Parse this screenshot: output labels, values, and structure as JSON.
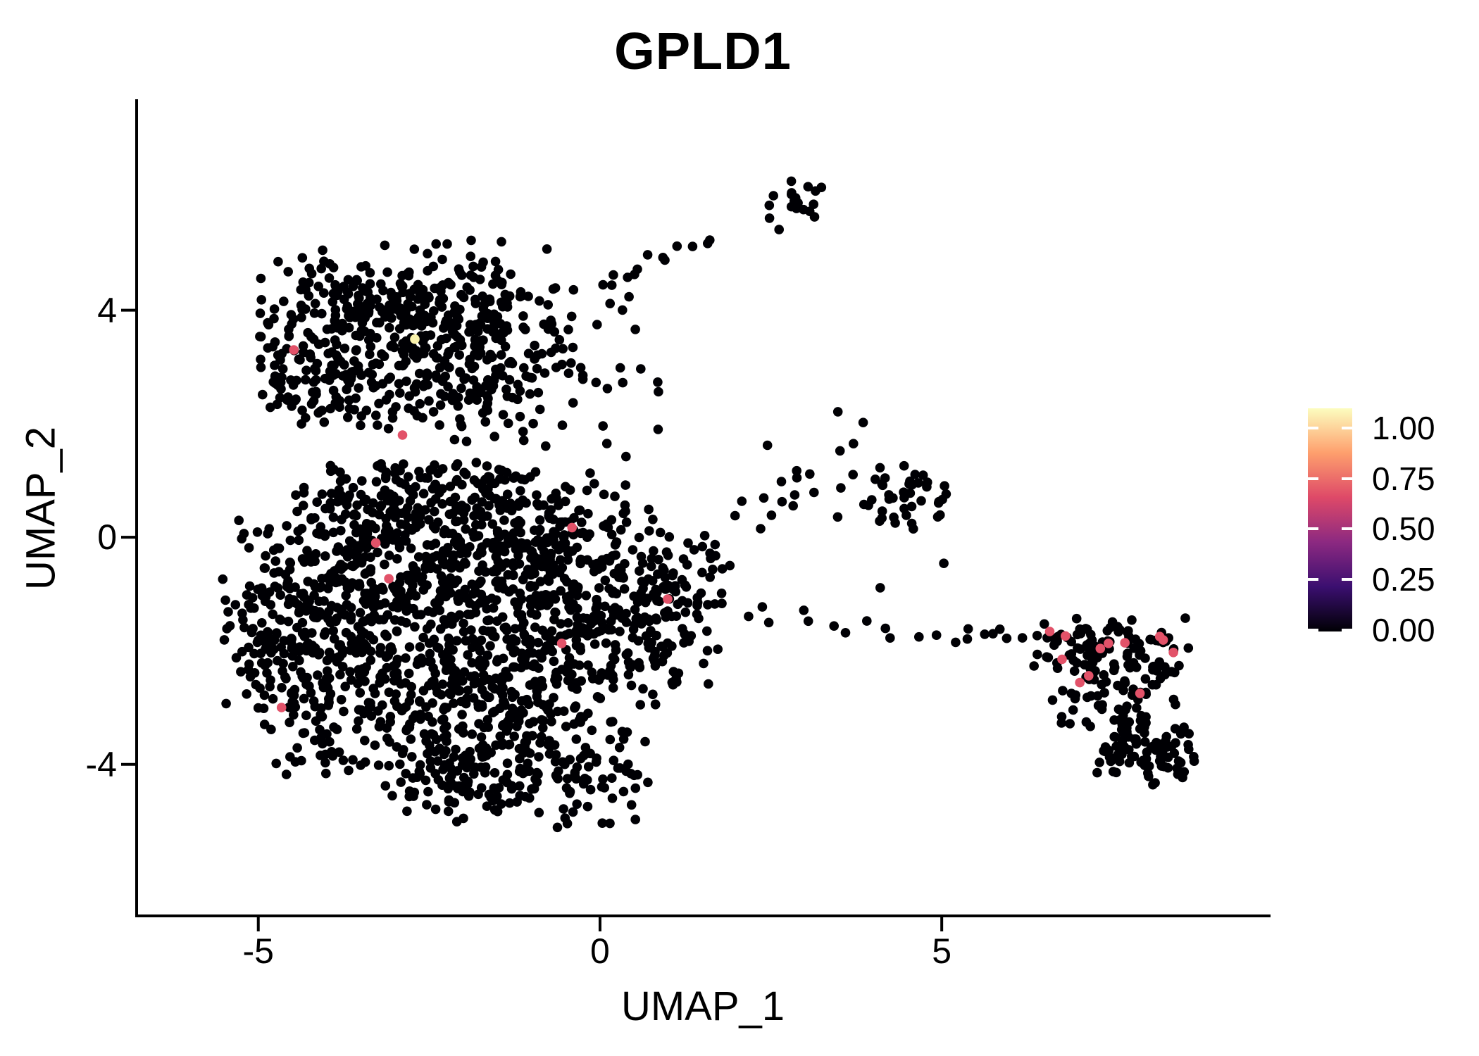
{
  "title": "GPLD1",
  "chart_data": {
    "type": "scatter",
    "title": "GPLD1",
    "xlabel": "UMAP_1",
    "ylabel": "UMAP_2",
    "xlim": [
      -6.78,
      9.79
    ],
    "ylim": [
      -6.67,
      7.69
    ],
    "grid": false,
    "background": "#ffffff",
    "base_color": "#000004",
    "point_radius_px": 6.8,
    "x_ticks": [
      {
        "value": -5,
        "label": "-5"
      },
      {
        "value": 0,
        "label": "0"
      },
      {
        "value": 5,
        "label": "5"
      }
    ],
    "y_ticks": [
      {
        "value": 4,
        "label": "4"
      },
      {
        "value": 0,
        "label": "0"
      },
      {
        "value": -4,
        "label": "-4"
      }
    ],
    "legend": {
      "position": "right",
      "colormap": "magma",
      "tick_labels": [
        "1.00",
        "0.75",
        "0.50",
        "0.25",
        "0.00"
      ],
      "tick_values": [
        1.0,
        0.75,
        0.5,
        0.25,
        0.0
      ],
      "gradient_stops": [
        {
          "t": 0.0,
          "color": "#000004"
        },
        {
          "t": 0.2,
          "color": "#3B0F70"
        },
        {
          "t": 0.4,
          "color": "#8C2981"
        },
        {
          "t": 0.6,
          "color": "#DE4968"
        },
        {
          "t": 0.8,
          "color": "#FE9F6D"
        },
        {
          "t": 1.0,
          "color": "#FCFDBF"
        }
      ]
    },
    "seed": 7,
    "clusters": [
      {
        "name": "upper-left-top",
        "cx": -2.75,
        "cy": 4.15,
        "sx": 1.05,
        "sy": 0.5,
        "n": 270,
        "bounds": [
          -5.0,
          0.95,
          2.8,
          5.3
        ]
      },
      {
        "name": "upper-left-bottom",
        "cx": -2.45,
        "cy": 3.0,
        "sx": 1.15,
        "sy": 0.62,
        "n": 300,
        "bounds": [
          -5.05,
          0.95,
          1.6,
          4.4
        ]
      },
      {
        "name": "upper-left-arm",
        "cx": -4.35,
        "cy": 3.0,
        "sx": 0.4,
        "sy": 0.5,
        "n": 55,
        "bounds": [
          -5.05,
          -3.5,
          2.1,
          3.95
        ]
      },
      {
        "name": "top-small",
        "cx": 2.85,
        "cy": 5.95,
        "sx": 0.23,
        "sy": 0.2,
        "n": 19,
        "bounds": [
          2.3,
          3.45,
          5.45,
          6.45
        ]
      },
      {
        "name": "main-left",
        "cx": -4.3,
        "cy": -1.6,
        "sx": 0.65,
        "sy": 1.1,
        "n": 280,
        "bounds": [
          -5.65,
          -3.2,
          -4.0,
          0.9
        ]
      },
      {
        "name": "main-center-up",
        "cx": -2.9,
        "cy": -0.4,
        "sx": 0.85,
        "sy": 0.75,
        "n": 300,
        "bounds": [
          -5.3,
          -0.9,
          -2.2,
          1.3
        ]
      },
      {
        "name": "main-center-low",
        "cx": -2.4,
        "cy": -2.6,
        "sx": 1.0,
        "sy": 0.85,
        "n": 340,
        "bounds": [
          -5.0,
          0.2,
          -4.6,
          -0.9
        ]
      },
      {
        "name": "main-mid-up",
        "cx": -0.9,
        "cy": -0.1,
        "sx": 0.75,
        "sy": 0.65,
        "n": 230,
        "bounds": [
          -2.4,
          0.9,
          -1.6,
          1.2
        ]
      },
      {
        "name": "main-mid-low",
        "cx": -0.4,
        "cy": -1.9,
        "sx": 0.85,
        "sy": 0.85,
        "n": 260,
        "bounds": [
          -2.2,
          1.4,
          -4.0,
          -0.3
        ]
      },
      {
        "name": "main-right",
        "cx": 0.9,
        "cy": -1.0,
        "sx": 0.6,
        "sy": 0.8,
        "n": 130,
        "bounds": [
          -0.2,
          1.8,
          -2.8,
          0.3
        ]
      },
      {
        "name": "main-bottom",
        "cx": -1.3,
        "cy": -4.1,
        "sx": 1.0,
        "sy": 0.5,
        "n": 190,
        "bounds": [
          -3.6,
          0.8,
          -5.15,
          -3.2
        ]
      },
      {
        "name": "main-top-band",
        "cx": -2.5,
        "cy": 0.8,
        "sx": 0.9,
        "sy": 0.4,
        "n": 110,
        "bounds": [
          -4.6,
          -0.6,
          0.1,
          1.35
        ]
      },
      {
        "name": "mid-right",
        "cx": 4.5,
        "cy": 0.8,
        "sx": 0.33,
        "sy": 0.32,
        "n": 42,
        "bounds": [
          3.8,
          5.15,
          0.1,
          1.5
        ]
      },
      {
        "name": "mid-right-halo",
        "cx": 3.0,
        "cy": 0.85,
        "sx": 0.7,
        "sy": 0.5,
        "n": 18,
        "bounds": [
          1.9,
          4.0,
          -0.1,
          1.7
        ]
      },
      {
        "name": "far-right-top",
        "cx": 7.4,
        "cy": -1.95,
        "sx": 0.72,
        "sy": 0.3,
        "n": 105,
        "bounds": [
          6.2,
          8.65,
          -2.55,
          -1.4
        ]
      },
      {
        "name": "far-right-mid",
        "cx": 7.5,
        "cy": -2.85,
        "sx": 0.55,
        "sy": 0.38,
        "n": 55,
        "bounds": [
          6.6,
          8.5,
          -3.45,
          -2.35
        ]
      },
      {
        "name": "far-right-bottom",
        "cx": 8.05,
        "cy": -3.85,
        "sx": 0.5,
        "sy": 0.32,
        "n": 85,
        "bounds": [
          7.15,
          8.75,
          -4.4,
          -3.25
        ]
      }
    ],
    "trails": [
      {
        "name": "ul-to-top-cluster",
        "x1": -0.15,
        "y1": 4.4,
        "x2": 1.7,
        "y2": 5.4,
        "n": 13,
        "jitter": 0.14
      },
      {
        "name": "main-to-far-right",
        "x1": 2.0,
        "y1": -1.35,
        "x2": 6.15,
        "y2": -1.85,
        "n": 17,
        "jitter": 0.17
      }
    ],
    "singles": [
      [
        2.48,
        5.62
      ],
      [
        2.62,
        5.42
      ],
      [
        3.48,
        2.21
      ],
      [
        3.85,
        2.02
      ],
      [
        5.03,
        -0.46
      ],
      [
        4.1,
        -0.89
      ],
      [
        5.85,
        -1.62
      ],
      [
        5.95,
        -1.78
      ],
      [
        5.75,
        -1.7
      ],
      [
        2.35,
        0.15
      ],
      [
        1.9,
        -0.5
      ],
      [
        0.1,
        1.65
      ],
      [
        0.38,
        1.42
      ],
      [
        0.85,
        1.9
      ]
    ],
    "highlighted_points": [
      {
        "x": -4.48,
        "y": 3.3,
        "value": 0.62,
        "color": "#E25269"
      },
      {
        "x": -2.89,
        "y": 1.8,
        "value": 0.62,
        "color": "#E25269"
      },
      {
        "x": -3.28,
        "y": -0.1,
        "value": 0.62,
        "color": "#E25269"
      },
      {
        "x": -3.09,
        "y": -0.73,
        "value": 0.62,
        "color": "#E25269"
      },
      {
        "x": -0.41,
        "y": 0.17,
        "value": 0.62,
        "color": "#E25269"
      },
      {
        "x": -0.56,
        "y": -1.87,
        "value": 0.62,
        "color": "#E25269"
      },
      {
        "x": 0.99,
        "y": -1.09,
        "value": 0.62,
        "color": "#E25269"
      },
      {
        "x": -4.66,
        "y": -3.0,
        "value": 0.62,
        "color": "#E25269"
      },
      {
        "x": 6.58,
        "y": -1.66,
        "value": 0.62,
        "color": "#E25269"
      },
      {
        "x": 6.81,
        "y": -1.74,
        "value": 0.62,
        "color": "#E25269"
      },
      {
        "x": 6.76,
        "y": -2.15,
        "value": 0.62,
        "color": "#E25269"
      },
      {
        "x": 7.32,
        "y": -1.96,
        "value": 0.62,
        "color": "#E25269"
      },
      {
        "x": 7.44,
        "y": -1.87,
        "value": 0.62,
        "color": "#E25269"
      },
      {
        "x": 7.68,
        "y": -1.86,
        "value": 0.62,
        "color": "#E25269"
      },
      {
        "x": 8.19,
        "y": -1.75,
        "value": 0.62,
        "color": "#E25269"
      },
      {
        "x": 8.24,
        "y": -1.81,
        "value": 0.62,
        "color": "#E25269"
      },
      {
        "x": 8.39,
        "y": -2.03,
        "value": 0.62,
        "color": "#E25269"
      },
      {
        "x": 7.15,
        "y": -2.44,
        "value": 0.62,
        "color": "#E25269"
      },
      {
        "x": 7.02,
        "y": -2.56,
        "value": 0.62,
        "color": "#E25269"
      },
      {
        "x": 7.9,
        "y": -2.75,
        "value": 0.62,
        "color": "#E25269"
      },
      {
        "x": -2.71,
        "y": 3.49,
        "value": 0.97,
        "color": "#FAF3AC"
      }
    ]
  }
}
